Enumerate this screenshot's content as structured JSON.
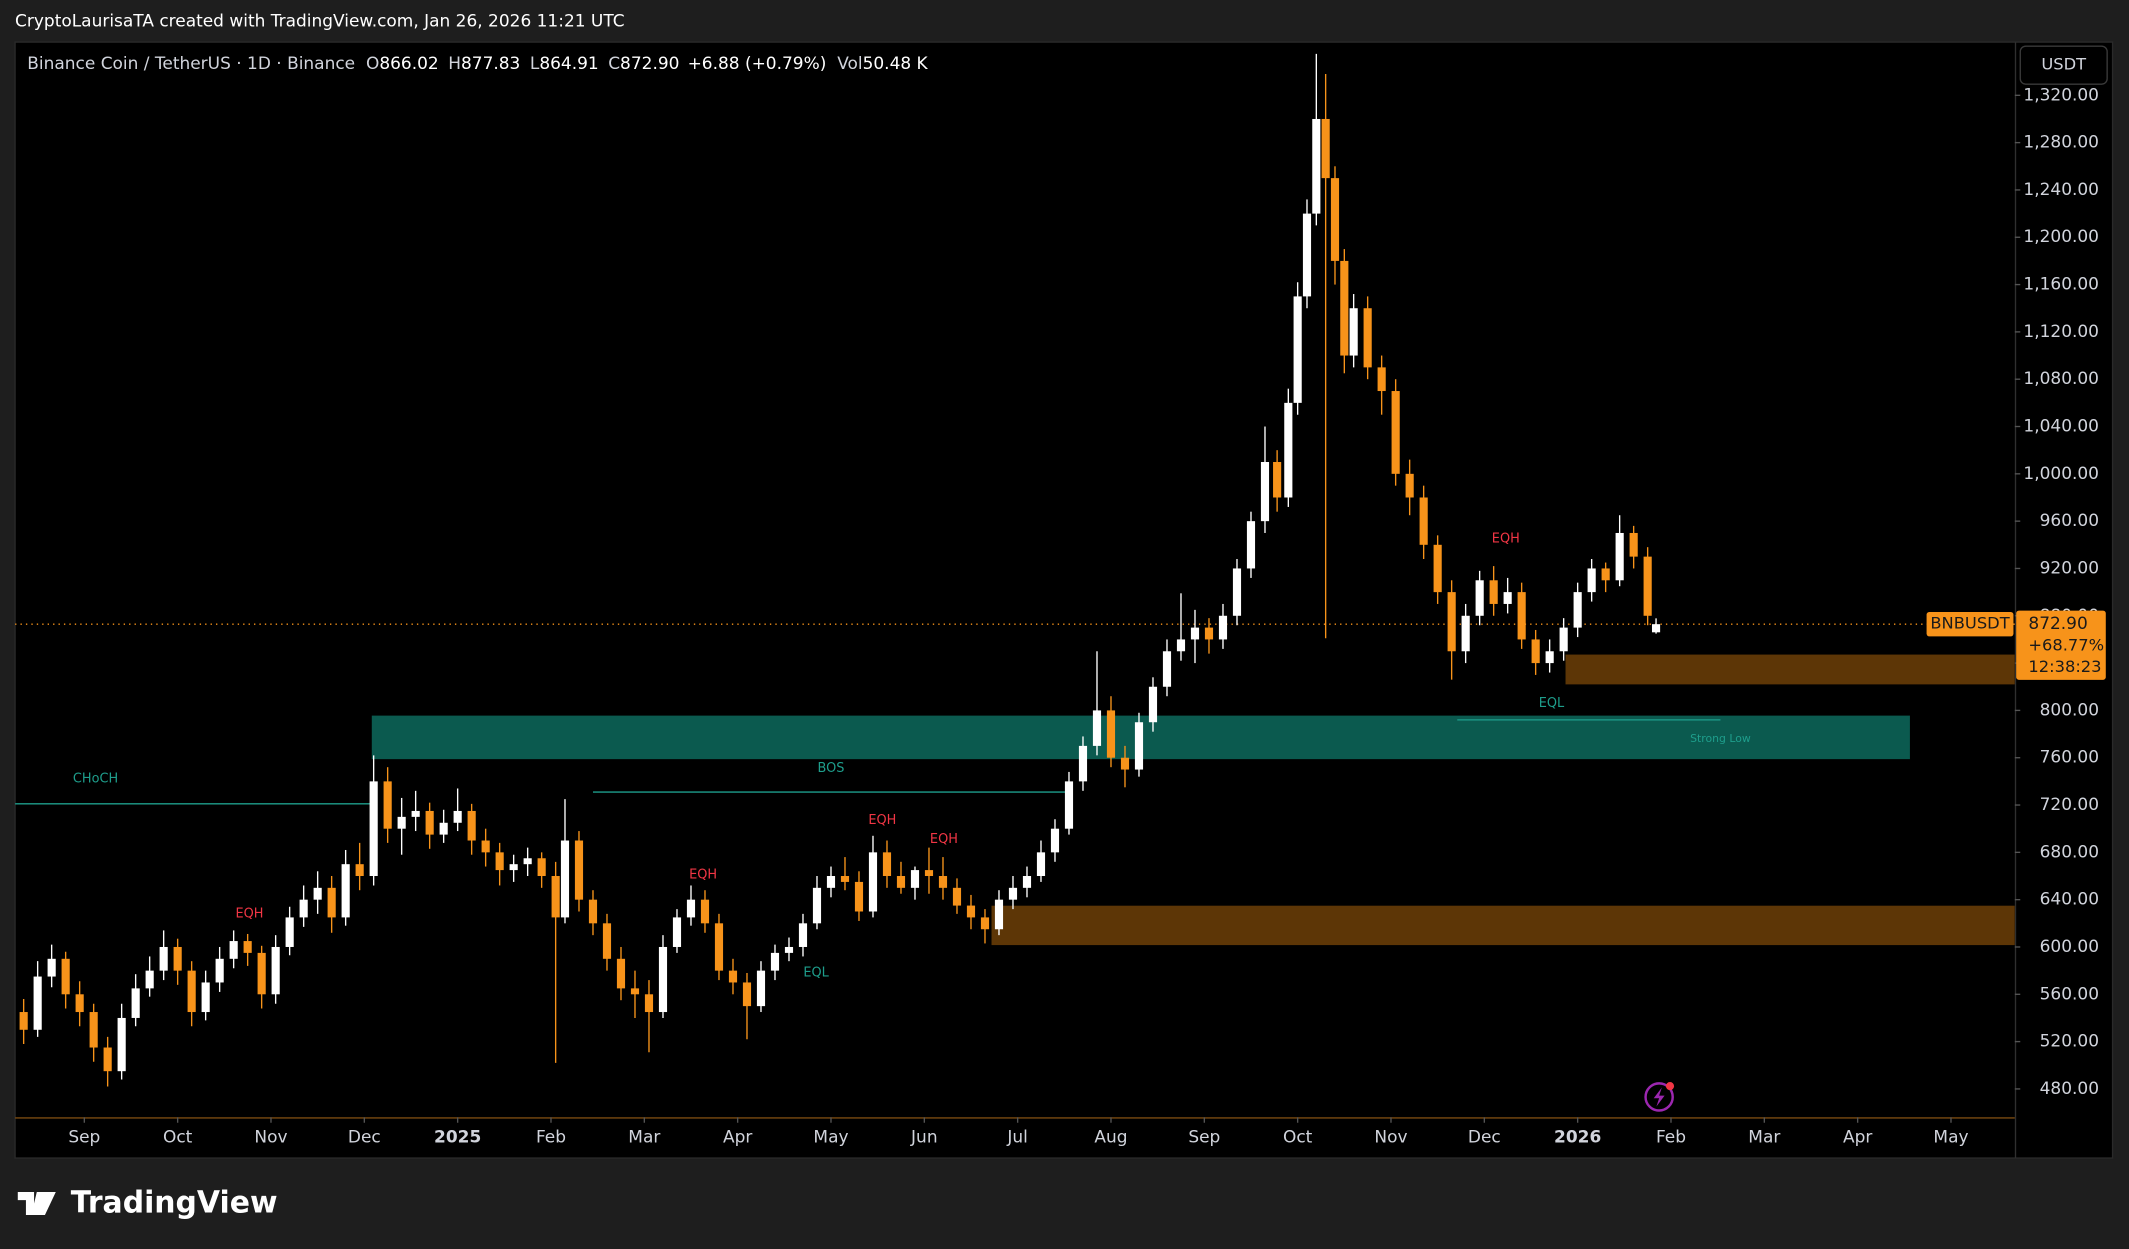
{
  "header": "CryptoLaurisaTA created with TradingView.com, Jan 26, 2026 11:21 UTC",
  "currency_button": "USDT",
  "brand": "TradingView",
  "chart_data": {
    "type": "candlestick",
    "legend": {
      "symbol_text": "Binance Coin / TetherUS · 1D · Binance",
      "ohlc": [
        {
          "key": "O",
          "value": "866.02"
        },
        {
          "key": "H",
          "value": "877.83"
        },
        {
          "key": "L",
          "value": "864.91"
        },
        {
          "key": "C",
          "value": "872.90"
        }
      ],
      "change": "+6.88 (+0.79%)",
      "volume_key": "Vol",
      "volume": "50.48 K"
    },
    "up_color": "#ffffff",
    "down_color": "#f7931a",
    "grid": false,
    "xlim": [
      -0.742,
      20.684
    ],
    "xticks": [
      {
        "value": 0,
        "label": "Sep"
      },
      {
        "value": 1,
        "label": "Oct"
      },
      {
        "value": 2,
        "label": "Nov"
      },
      {
        "value": 3,
        "label": "Dec"
      },
      {
        "value": 4,
        "label": "2025"
      },
      {
        "value": 5,
        "label": "Feb"
      },
      {
        "value": 6,
        "label": "Mar"
      },
      {
        "value": 7,
        "label": "Apr"
      },
      {
        "value": 8,
        "label": "May"
      },
      {
        "value": 9,
        "label": "Jun"
      },
      {
        "value": 10,
        "label": "Jul"
      },
      {
        "value": 11,
        "label": "Aug"
      },
      {
        "value": 12,
        "label": "Sep"
      },
      {
        "value": 13,
        "label": "Oct"
      },
      {
        "value": 14,
        "label": "Nov"
      },
      {
        "value": 15,
        "label": "Dec"
      },
      {
        "value": 16,
        "label": "2026"
      },
      {
        "value": 17,
        "label": "Feb"
      },
      {
        "value": 18,
        "label": "Mar"
      },
      {
        "value": 19,
        "label": "Apr"
      },
      {
        "value": 20,
        "label": "May"
      }
    ],
    "ylim": [
      456,
      1365
    ],
    "yticks": [
      {
        "value": 480,
        "label": "480.00"
      },
      {
        "value": 520,
        "label": "520.00"
      },
      {
        "value": 560,
        "label": "560.00"
      },
      {
        "value": 600,
        "label": "600.00"
      },
      {
        "value": 640,
        "label": "640.00"
      },
      {
        "value": 680,
        "label": "680.00"
      },
      {
        "value": 720,
        "label": "720.00"
      },
      {
        "value": 760,
        "label": "760.00"
      },
      {
        "value": 800,
        "label": "800.00"
      },
      {
        "value": 840,
        "label": "840.00"
      },
      {
        "value": 880,
        "label": "880.00"
      },
      {
        "value": 920,
        "label": "920.00"
      },
      {
        "value": 960,
        "label": "960.00"
      },
      {
        "value": 1000,
        "label": "1,000.00"
      },
      {
        "value": 1040,
        "label": "1,040.00"
      },
      {
        "value": 1080,
        "label": "1,080.00"
      },
      {
        "value": 1120,
        "label": "1,120.00"
      },
      {
        "value": 1160,
        "label": "1,160.00"
      },
      {
        "value": 1200,
        "label": "1,200.00"
      },
      {
        "value": 1240,
        "label": "1,240.00"
      },
      {
        "value": 1280,
        "label": "1,280.00"
      },
      {
        "value": 1320,
        "label": "1,320.00"
      }
    ],
    "candles": [
      [
        -0.65,
        545,
        556,
        518,
        530
      ],
      [
        -0.5,
        530,
        588,
        524,
        575
      ],
      [
        -0.35,
        575,
        602,
        566,
        590
      ],
      [
        -0.2,
        590,
        596,
        548,
        560
      ],
      [
        -0.05,
        560,
        571,
        533,
        545
      ],
      [
        0.1,
        545,
        552,
        503,
        515
      ],
      [
        0.25,
        515,
        524,
        482,
        495
      ],
      [
        0.4,
        495,
        552,
        488,
        540
      ],
      [
        0.55,
        540,
        577,
        533,
        565
      ],
      [
        0.7,
        565,
        592,
        558,
        580
      ],
      [
        0.85,
        580,
        614,
        572,
        600
      ],
      [
        1.0,
        600,
        607,
        568,
        580
      ],
      [
        1.15,
        580,
        588,
        533,
        545
      ],
      [
        1.3,
        545,
        580,
        538,
        570
      ],
      [
        1.45,
        570,
        600,
        562,
        590
      ],
      [
        1.6,
        590,
        614,
        582,
        605
      ],
      [
        1.75,
        605,
        611,
        584,
        595
      ],
      [
        1.9,
        595,
        601,
        548,
        560
      ],
      [
        2.05,
        560,
        610,
        552,
        600
      ],
      [
        2.2,
        600,
        634,
        593,
        625
      ],
      [
        2.35,
        625,
        652,
        617,
        640
      ],
      [
        2.5,
        640,
        664,
        628,
        650
      ],
      [
        2.65,
        650,
        660,
        612,
        625
      ],
      [
        2.8,
        625,
        682,
        618,
        670
      ],
      [
        2.95,
        670,
        688,
        648,
        660
      ],
      [
        3.1,
        660,
        762,
        652,
        740
      ],
      [
        3.25,
        740,
        752,
        688,
        700
      ],
      [
        3.4,
        700,
        726,
        678,
        710
      ],
      [
        3.55,
        710,
        732,
        698,
        715
      ],
      [
        3.7,
        715,
        722,
        683,
        695
      ],
      [
        3.85,
        695,
        716,
        688,
        705
      ],
      [
        4.0,
        705,
        734,
        698,
        715
      ],
      [
        4.15,
        715,
        721,
        678,
        690
      ],
      [
        4.3,
        690,
        700,
        668,
        680
      ],
      [
        4.45,
        680,
        688,
        652,
        665
      ],
      [
        4.6,
        665,
        678,
        655,
        670
      ],
      [
        4.75,
        670,
        684,
        660,
        675
      ],
      [
        4.9,
        675,
        680,
        650,
        660
      ],
      [
        5.05,
        660,
        672,
        502,
        625
      ],
      [
        5.15,
        625,
        725,
        620,
        690
      ],
      [
        5.3,
        690,
        698,
        630,
        640
      ],
      [
        5.45,
        640,
        648,
        610,
        620
      ],
      [
        5.6,
        620,
        628,
        580,
        590
      ],
      [
        5.75,
        590,
        600,
        555,
        565
      ],
      [
        5.9,
        565,
        580,
        540,
        560
      ],
      [
        6.05,
        560,
        572,
        511,
        545
      ],
      [
        6.2,
        545,
        610,
        540,
        600
      ],
      [
        6.35,
        600,
        632,
        595,
        625
      ],
      [
        6.5,
        625,
        652,
        618,
        640
      ],
      [
        6.65,
        640,
        648,
        612,
        620
      ],
      [
        6.8,
        620,
        628,
        572,
        580
      ],
      [
        6.95,
        580,
        590,
        560,
        570
      ],
      [
        7.1,
        570,
        578,
        522,
        550
      ],
      [
        7.25,
        550,
        588,
        545,
        580
      ],
      [
        7.4,
        580,
        602,
        572,
        595
      ],
      [
        7.55,
        595,
        608,
        588,
        600
      ],
      [
        7.7,
        600,
        628,
        592,
        620
      ],
      [
        7.85,
        620,
        660,
        615,
        650
      ],
      [
        8.0,
        650,
        668,
        642,
        660
      ],
      [
        8.15,
        660,
        676,
        648,
        655
      ],
      [
        8.3,
        655,
        664,
        622,
        630
      ],
      [
        8.45,
        630,
        694,
        625,
        680
      ],
      [
        8.6,
        680,
        690,
        650,
        660
      ],
      [
        8.75,
        660,
        672,
        645,
        650
      ],
      [
        8.9,
        650,
        668,
        640,
        665
      ],
      [
        9.05,
        665,
        684,
        645,
        660
      ],
      [
        9.2,
        660,
        676,
        640,
        650
      ],
      [
        9.35,
        650,
        658,
        628,
        635
      ],
      [
        9.5,
        635,
        644,
        615,
        625
      ],
      [
        9.65,
        625,
        632,
        603,
        615
      ],
      [
        9.8,
        615,
        648,
        610,
        640
      ],
      [
        9.95,
        640,
        660,
        632,
        650
      ],
      [
        10.1,
        650,
        668,
        642,
        660
      ],
      [
        10.25,
        660,
        690,
        655,
        680
      ],
      [
        10.4,
        680,
        708,
        672,
        700
      ],
      [
        10.55,
        700,
        748,
        695,
        740
      ],
      [
        10.7,
        740,
        778,
        732,
        770
      ],
      [
        10.85,
        770,
        850,
        762,
        800
      ],
      [
        11.0,
        800,
        812,
        752,
        760
      ],
      [
        11.15,
        760,
        770,
        735,
        750
      ],
      [
        11.3,
        750,
        798,
        744,
        790
      ],
      [
        11.45,
        790,
        828,
        782,
        820
      ],
      [
        11.6,
        820,
        860,
        812,
        850
      ],
      [
        11.75,
        850,
        899,
        842,
        860
      ],
      [
        11.9,
        860,
        885,
        840,
        870
      ],
      [
        12.05,
        870,
        878,
        848,
        860
      ],
      [
        12.2,
        860,
        890,
        852,
        880
      ],
      [
        12.35,
        880,
        928,
        872,
        920
      ],
      [
        12.5,
        920,
        968,
        912,
        960
      ],
      [
        12.65,
        960,
        1040,
        950,
        1010
      ],
      [
        12.78,
        1010,
        1020,
        968,
        980
      ],
      [
        12.9,
        980,
        1072,
        972,
        1060
      ],
      [
        13.0,
        1060,
        1162,
        1050,
        1150
      ],
      [
        13.1,
        1150,
        1232,
        1140,
        1220
      ],
      [
        13.2,
        1220,
        1355,
        1210,
        1300
      ],
      [
        13.3,
        1300,
        1338,
        861,
        1250
      ],
      [
        13.4,
        1250,
        1260,
        1160,
        1180
      ],
      [
        13.5,
        1180,
        1190,
        1085,
        1100
      ],
      [
        13.6,
        1100,
        1152,
        1090,
        1140
      ],
      [
        13.75,
        1140,
        1150,
        1080,
        1090
      ],
      [
        13.9,
        1090,
        1100,
        1050,
        1070
      ],
      [
        14.05,
        1070,
        1080,
        990,
        1000
      ],
      [
        14.2,
        1000,
        1012,
        965,
        980
      ],
      [
        14.35,
        980,
        990,
        928,
        940
      ],
      [
        14.5,
        940,
        948,
        890,
        900
      ],
      [
        14.65,
        900,
        910,
        826,
        850
      ],
      [
        14.8,
        850,
        890,
        840,
        880
      ],
      [
        14.95,
        880,
        918,
        872,
        910
      ],
      [
        15.1,
        910,
        922,
        880,
        890
      ],
      [
        15.25,
        890,
        912,
        882,
        900
      ],
      [
        15.4,
        900,
        908,
        852,
        860
      ],
      [
        15.55,
        860,
        868,
        830,
        840
      ],
      [
        15.7,
        840,
        860,
        832,
        850
      ],
      [
        15.85,
        850,
        878,
        842,
        870
      ],
      [
        16.0,
        870,
        908,
        862,
        900
      ],
      [
        16.15,
        900,
        928,
        892,
        920
      ],
      [
        16.3,
        920,
        925,
        900,
        910
      ],
      [
        16.45,
        910,
        965,
        905,
        950
      ],
      [
        16.6,
        950,
        956,
        920,
        930
      ],
      [
        16.75,
        930,
        938,
        872,
        880
      ],
      [
        16.84,
        866.02,
        877.83,
        864.91,
        872.9
      ]
    ],
    "zones": [
      {
        "x": [
          3.08,
          19.56
        ],
        "price": [
          758.8,
          795.6
        ],
        "color": "#0b5a4f"
      },
      {
        "x": [
          15.87,
          20.684
        ],
        "price": [
          822,
          847.2
        ],
        "color": "#5d3606"
      },
      {
        "x": [
          9.72,
          20.684
        ],
        "price": [
          601.6,
          634.9
        ],
        "color": "#5d3606"
      }
    ],
    "lines": [
      {
        "x": [
          -0.742,
          3.08
        ],
        "price": 721,
        "color": "#1e9e8c"
      },
      {
        "x": [
          5.45,
          10.59
        ],
        "price": 731,
        "color": "#1e9e8c"
      },
      {
        "x": [
          14.71,
          17.53
        ],
        "price": 792,
        "color": "#1e9e8c"
      }
    ],
    "annotations": [
      {
        "text": "CHoCH",
        "x": 0.12,
        "price": 742,
        "color": "#1e9e8c"
      },
      {
        "text": "BOS",
        "x": 8.0,
        "price": 751,
        "color": "#1e9e8c"
      },
      {
        "text": "EQH",
        "x": 1.77,
        "price": 628,
        "color": "#f23645"
      },
      {
        "text": "EQH",
        "x": 6.63,
        "price": 661,
        "color": "#f23645"
      },
      {
        "text": "EQH",
        "x": 8.55,
        "price": 707,
        "color": "#f23645"
      },
      {
        "text": "EQH",
        "x": 9.21,
        "price": 691,
        "color": "#f23645"
      },
      {
        "text": "EQH",
        "x": 15.23,
        "price": 945,
        "color": "#f23645"
      },
      {
        "text": "EQL",
        "x": 7.84,
        "price": 578,
        "color": "#1e9e8c"
      },
      {
        "text": "EQL",
        "x": 15.72,
        "price": 806,
        "color": "#1e9e8c"
      },
      {
        "text": "Strong Low",
        "x": 17.53,
        "price": 776,
        "color": "#1e9e8c"
      }
    ],
    "last_price": {
      "value": 872.9,
      "label": "872.90"
    },
    "symbol": "BNBUSDT",
    "change_percent": "+68.77%",
    "countdown": "12:38:23",
    "price_color": "#f7931a"
  }
}
